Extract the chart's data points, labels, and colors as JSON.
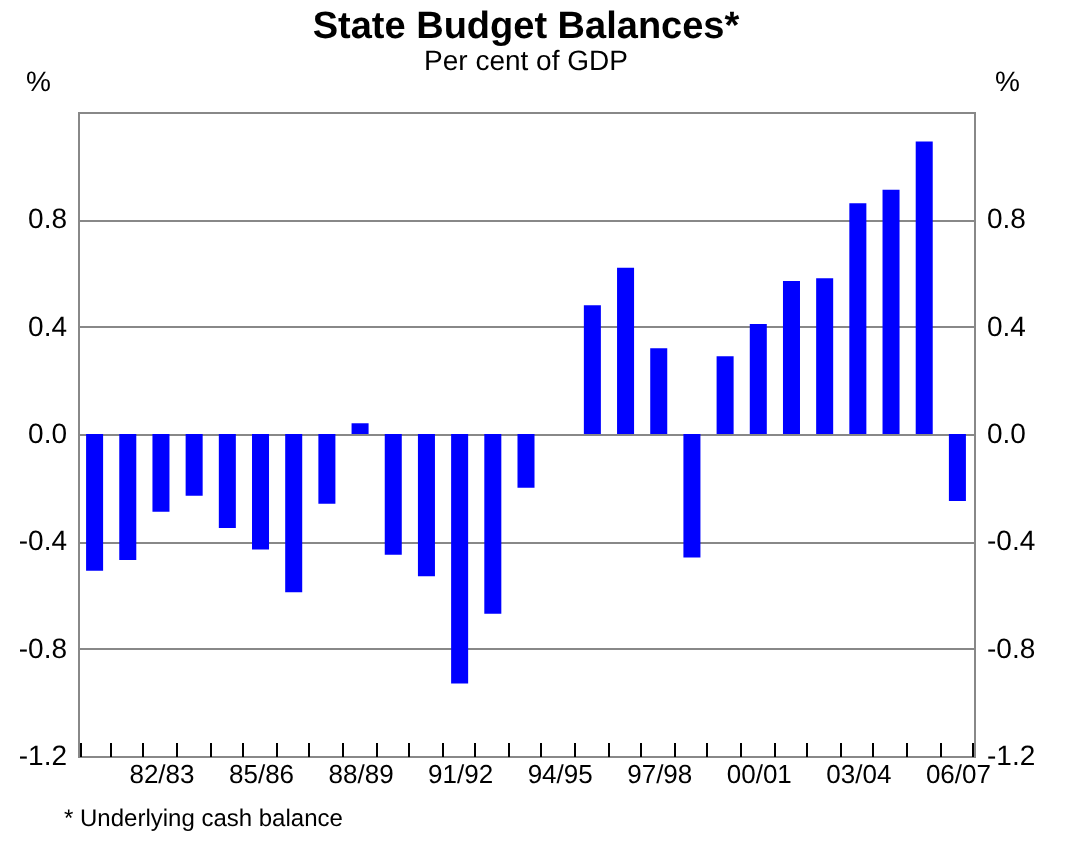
{
  "chart_data": {
    "type": "bar",
    "title": "State Budget Balances*",
    "subtitle": "Per cent of GDP",
    "ylabel": "%",
    "y2label": "%",
    "categories": [
      null,
      null,
      "82/83",
      null,
      null,
      "85/86",
      null,
      null,
      "88/89",
      null,
      null,
      "91/92",
      null,
      null,
      "94/95",
      null,
      null,
      "97/98",
      null,
      null,
      "00/01",
      null,
      null,
      "03/04",
      null,
      null,
      "06/07"
    ],
    "values": [
      -0.51,
      -0.47,
      -0.29,
      -0.23,
      -0.35,
      -0.43,
      -0.59,
      -0.26,
      0.04,
      -0.45,
      -0.53,
      -0.93,
      -0.67,
      -0.2,
      0.0,
      0.48,
      0.62,
      0.32,
      -0.46,
      0.29,
      0.41,
      0.57,
      0.58,
      0.86,
      0.91,
      1.09,
      -0.25
    ],
    "color": "#0000ff",
    "ylim": [
      -1.2,
      1.2
    ],
    "yticks": [
      {
        "value": -1.2,
        "label": "-1.2"
      },
      {
        "value": -0.8,
        "label": "-0.8"
      },
      {
        "value": -0.4,
        "label": "-0.4"
      },
      {
        "value": 0,
        "label": "0.0"
      },
      {
        "value": 0.4,
        "label": "0.4"
      },
      {
        "value": 0.8,
        "label": "0.8"
      }
    ],
    "y2lim": [
      -1.2,
      1.2
    ],
    "y2ticks": [
      {
        "value": -1.2,
        "label": "-1.2"
      },
      {
        "value": -0.8,
        "label": "-0.8"
      },
      {
        "value": -0.4,
        "label": "-0.4"
      },
      {
        "value": 0,
        "label": "0.0"
      },
      {
        "value": 0.4,
        "label": "0.4"
      },
      {
        "value": 0.8,
        "label": "0.8"
      }
    ],
    "grid": "y",
    "annotations": [
      "*   Underlying cash balance"
    ]
  }
}
